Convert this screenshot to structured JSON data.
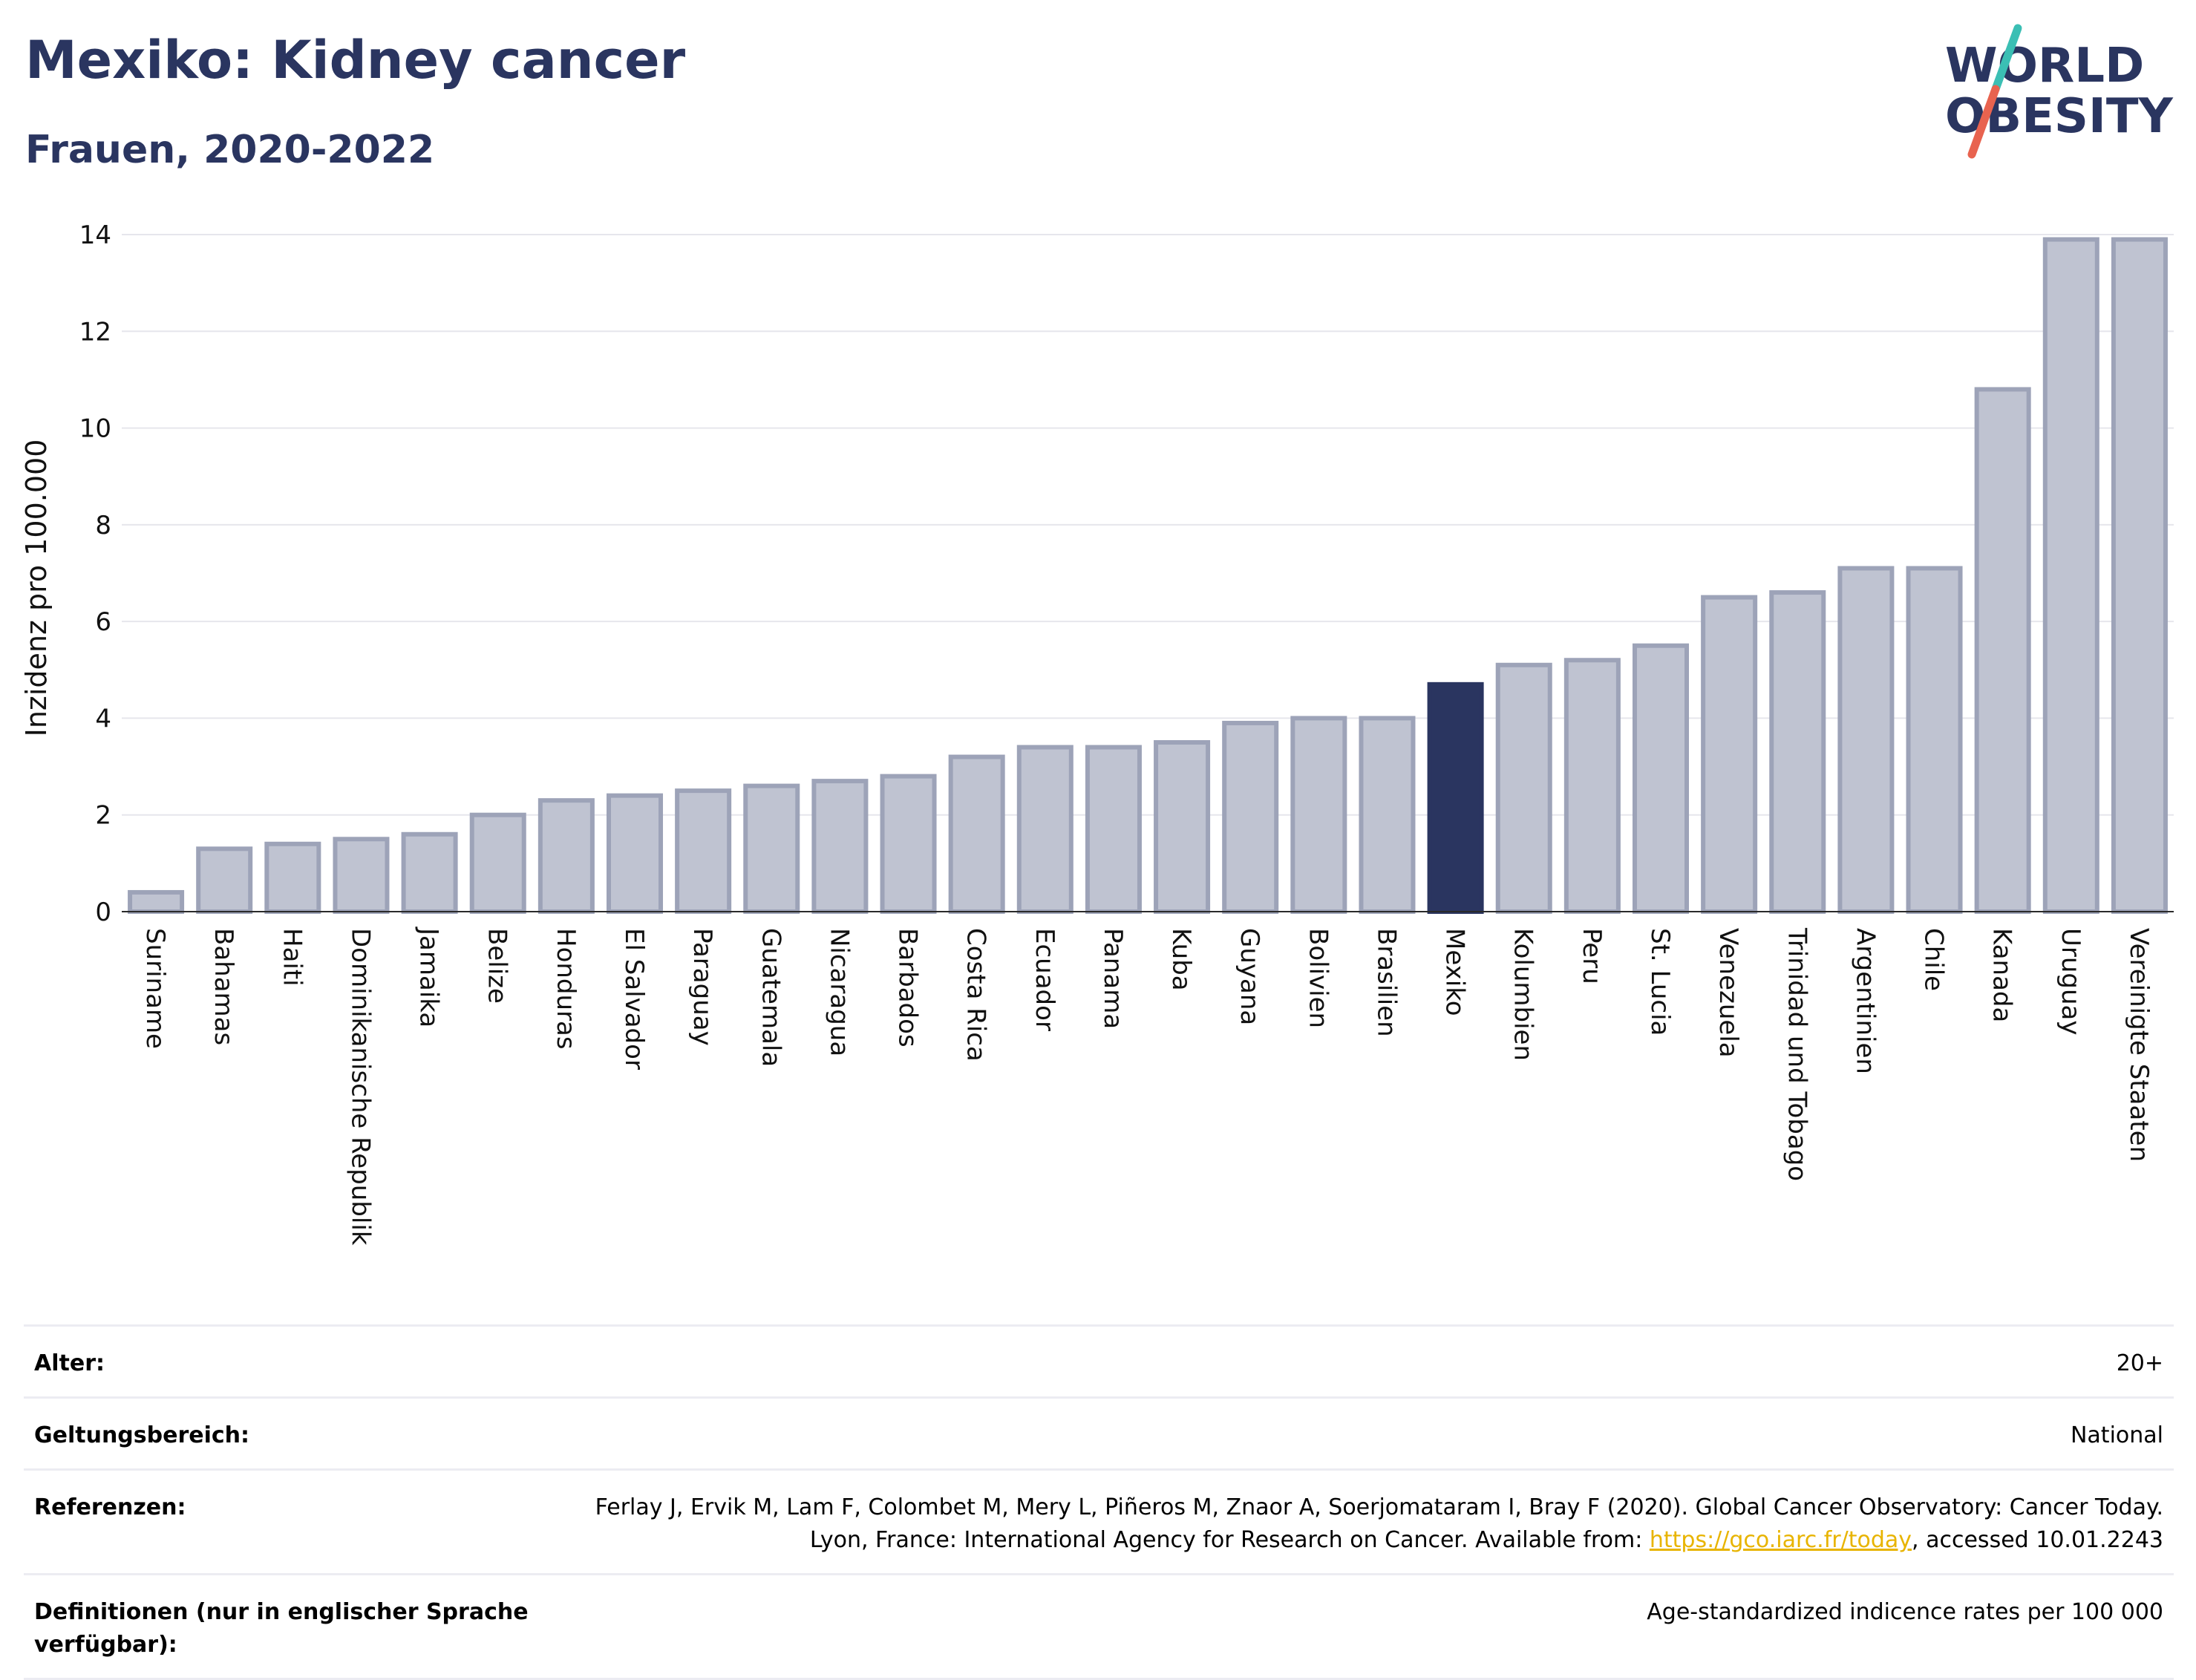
{
  "header": {
    "title": "Mexiko: Kidney cancer",
    "subtitle": "Frauen, 2020-2022"
  },
  "logo": {
    "line1": "WORLD",
    "line2": "OBESITY",
    "accent_teal": "#3bbfb4",
    "accent_red": "#e8634f",
    "text_color": "#2a3560"
  },
  "colors": {
    "bar_default": "#bfc3d1",
    "bar_border": "#9da3b8",
    "bar_highlight": "#2a3560",
    "grid": "#e6e6ec"
  },
  "chart_data": {
    "type": "bar",
    "ylabel": "Inzidenz pro 100.000",
    "ylim": [
      0,
      14
    ],
    "yticks": [
      0,
      2,
      4,
      6,
      8,
      10,
      12,
      14
    ],
    "grid": true,
    "highlight": "Mexiko",
    "categories": [
      "Suriname",
      "Bahamas",
      "Haiti",
      "Dominikanische Republik",
      "Jamaika",
      "Belize",
      "Honduras",
      "El Salvador",
      "Paraguay",
      "Guatemala",
      "Nicaragua",
      "Barbados",
      "Costa Rica",
      "Ecuador",
      "Panama",
      "Kuba",
      "Guyana",
      "Bolivien",
      "Brasilien",
      "Mexiko",
      "Kolumbien",
      "Peru",
      "St. Lucia",
      "Venezuela",
      "Trinidad und Tobago",
      "Argentinien",
      "Chile",
      "Kanada",
      "Uruguay",
      "Vereinigte Staaten"
    ],
    "values": [
      0.4,
      1.3,
      1.4,
      1.5,
      1.6,
      2.0,
      2.3,
      2.4,
      2.5,
      2.6,
      2.7,
      2.8,
      3.2,
      3.4,
      3.4,
      3.5,
      3.9,
      4.0,
      4.0,
      4.7,
      5.1,
      5.2,
      5.5,
      6.5,
      6.6,
      7.1,
      7.1,
      10.8,
      13.9,
      13.9
    ]
  },
  "info": {
    "age_label": "Alter:",
    "age_value": "20+",
    "scope_label": "Geltungsbereich:",
    "scope_value": "National",
    "ref_label": "Referenzen:",
    "ref_text_1": "Ferlay J, Ervik M, Lam F, Colombet M, Mery L, Piñeros M, Znaor A, Soerjomataram I, Bray F (2020). Global Cancer Observatory: Cancer Today. Lyon, France: International Agency for Research on Cancer. Available from: ",
    "ref_link": "https://gco.iarc.fr/today",
    "ref_text_2": ", accessed 10.01.2243",
    "def_label": "Definitionen (nur in englischer Sprache verfügbar):",
    "def_value": "Age-standardized indicence rates per 100 000"
  }
}
